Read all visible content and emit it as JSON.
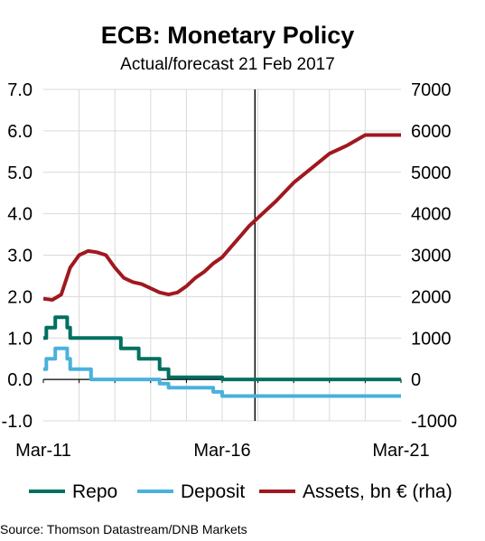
{
  "chart_data": {
    "type": "line",
    "title": "ECB: Monetary Policy",
    "subtitle": "Actual/forecast 21 Feb 2017",
    "source": "Source: Thomson Datastream/DNB Markets",
    "x_range": [
      "2011-03",
      "2021-03"
    ],
    "x_tick_labels": [
      "Mar-11",
      "Mar-16",
      "Mar-21"
    ],
    "forecast_divider_x": "2017-02",
    "y_left": {
      "range": [
        -1.0,
        7.0
      ],
      "tick_labels": [
        "7.0",
        "6.0",
        "5.0",
        "4.0",
        "3.0",
        "2.0",
        "1.0",
        "0.0",
        "-1.0"
      ]
    },
    "y_right": {
      "range": [
        -1000,
        7000
      ],
      "tick_labels": [
        "7000",
        "6000",
        "5000",
        "4000",
        "3000",
        "2000",
        "1000",
        "0",
        "-1000"
      ]
    },
    "grid": true,
    "legend_position": "bottom",
    "series": [
      {
        "name": "Repo",
        "axis": "left",
        "color": "#007060",
        "step": true,
        "points": [
          [
            "2011-03",
            1.0
          ],
          [
            "2011-04",
            1.25
          ],
          [
            "2011-07",
            1.5
          ],
          [
            "2011-11",
            1.25
          ],
          [
            "2011-12",
            1.0
          ],
          [
            "2013-05",
            0.75
          ],
          [
            "2013-11",
            0.5
          ],
          [
            "2014-06",
            0.25
          ],
          [
            "2014-09",
            0.05
          ],
          [
            "2016-03",
            0.0
          ],
          [
            "2021-03",
            0.0
          ]
        ]
      },
      {
        "name": "Deposit",
        "axis": "left",
        "color": "#4ab1dc",
        "step": true,
        "points": [
          [
            "2011-03",
            0.25
          ],
          [
            "2011-04",
            0.5
          ],
          [
            "2011-07",
            0.75
          ],
          [
            "2011-11",
            0.5
          ],
          [
            "2011-12",
            0.25
          ],
          [
            "2012-07",
            0.0
          ],
          [
            "2014-06",
            -0.1
          ],
          [
            "2014-09",
            -0.2
          ],
          [
            "2015-12",
            -0.3
          ],
          [
            "2016-03",
            -0.4
          ],
          [
            "2021-03",
            -0.4
          ]
        ]
      },
      {
        "name": "Assets, bn € (rha)",
        "axis": "right",
        "color": "#a01820",
        "step": false,
        "points": [
          [
            "2011-03",
            1950
          ],
          [
            "2011-06",
            1920
          ],
          [
            "2011-09",
            2050
          ],
          [
            "2011-12",
            2700
          ],
          [
            "2012-03",
            3000
          ],
          [
            "2012-06",
            3100
          ],
          [
            "2012-09",
            3070
          ],
          [
            "2012-12",
            3000
          ],
          [
            "2013-03",
            2700
          ],
          [
            "2013-06",
            2450
          ],
          [
            "2013-09",
            2350
          ],
          [
            "2013-12",
            2300
          ],
          [
            "2014-03",
            2200
          ],
          [
            "2014-06",
            2100
          ],
          [
            "2014-09",
            2050
          ],
          [
            "2014-12",
            2100
          ],
          [
            "2015-03",
            2250
          ],
          [
            "2015-06",
            2450
          ],
          [
            "2015-09",
            2600
          ],
          [
            "2015-12",
            2800
          ],
          [
            "2016-03",
            2950
          ],
          [
            "2016-06",
            3200
          ],
          [
            "2016-09",
            3450
          ],
          [
            "2016-12",
            3700
          ],
          [
            "2017-03",
            3900
          ],
          [
            "2017-09",
            4300
          ],
          [
            "2018-03",
            4750
          ],
          [
            "2018-09",
            5100
          ],
          [
            "2019-03",
            5450
          ],
          [
            "2019-09",
            5650
          ],
          [
            "2020-03",
            5900
          ],
          [
            "2021-03",
            5900
          ]
        ]
      }
    ]
  }
}
